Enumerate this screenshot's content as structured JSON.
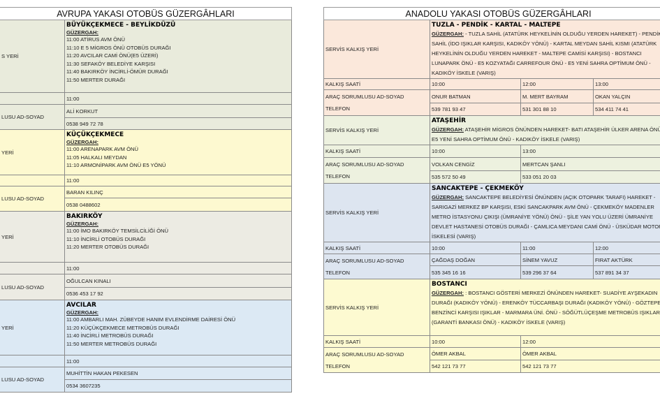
{
  "left": {
    "title": "AVRUPA YAKASI OTOBÜS GÜZERGÂHLARI",
    "sections": [
      {
        "label_route": "S YERİ",
        "name": "BÜYÜKÇEKMECE - BEYLİKDÜZÜ",
        "route_label": "GÜZERGAH:",
        "stops": [
          "11:00 ATİRUS AVM ÖNÜ",
          "11:10  E 5 MİGROS ÖNÜ OTOBÜS DURAĞI",
          "11:20  AVCILAR CAMİ ÖNÜ(E5 ÜZERİ)",
          "11:30  SEFAKÖY BELEDİYE KARŞISI",
          "11:40  BAKIRKÖY İNCİRLİ-ÖMÜR DURAĞI",
          "11:50  MERTER DURAĞI"
        ],
        "time": "11:00",
        "label_person": "LUSU AD-SOYAD",
        "person": "ALİ KORKUT",
        "phone": "0538 949 72 78",
        "color": "#e9ebdc"
      },
      {
        "label_route": "YERİ",
        "name": "KÜÇÜKÇEKMECE",
        "route_label": "GÜZERGAH:",
        "stops": [
          "11:00 ARENAPARK AVM ÖNÜ",
          "11:05 HALKALI MEYDAN",
          "11:10 ARMONİPARK AVM ÖNÜ E5 YÖNÜ"
        ],
        "time": "11:00",
        "label_person": "LUSU AD-SOYAD",
        "person": "BARAN KILINÇ",
        "phone": "0538 0488602",
        "color": "#fdf9d0"
      },
      {
        "label_route": "YERİ",
        "name": "BAKIRKÖY",
        "route_label": "GÜZERGAH:",
        "stops": [
          "11:00 İMO BAKIRKÖY TEMSİLCİLİĞİ ÖNÜ",
          "11:10  İNCİRLİ OTOBÜS DURAĞI",
          "11:20  MERTER OTOBÜS DURAĞI"
        ],
        "time": "11:00",
        "label_person": "LUSU AD-SOYAD",
        "person": "OĞULCAN KINALI",
        "phone": "0536 453 17 92",
        "color": "#ecebe3"
      },
      {
        "label_route": "YERİ",
        "name": "AVCILAR",
        "route_label": "GÜZERGAH:",
        "stops": [
          "11:00 AMBARLI MAH. ZÜBEYDE HANIM EVLENDİRME DAİRESİ ÖNÜ",
          "11:20 KÜÇÜKÇEKMECE  METROBÜS DURAĞI",
          "11:40 İNCİRLİ METROBÜS DURAĞI",
          "11:50 MERTER METROBÜS DURAĞI"
        ],
        "time": "11:00",
        "label_person": "LUSU AD-SOYAD",
        "person": "MUHİTTİN HAKAN PEKESEN",
        "phone": " 0534 3607235",
        "color": "#dce9f4"
      }
    ]
  },
  "right": {
    "title": "ANADOLU YAKASI OTOBÜS GÜZERGÂHLARI",
    "sections": [
      {
        "label_route": "SERVİS KALKIŞ YERİ",
        "name": "TUZLA - PENDİK - KARTAL - MALTEPE",
        "route_label": "GÜZERGAH:",
        "route_text": " - TUZLA SAHİL (ATATÜRK HEYKELİNİN OLDUĞU YERDEN HAREKET) - PENDİK SAHİL (İDO IŞIKLAR KARŞISI, KADIKÖY YÖNÜ) - KARTAL MEYDAN SAHİL KISMI (ATATÜRK HEYKELİNİN OLDUĞU YERDEN HAREKET - MALTEPE CAMİSİ KARŞISI) - BOSTANCI LUNAPARK ÖNÜ - E5 KOZYATAĞI CARREFOUR ÖNÜ - E5 YENİ SAHRA OPTİMUM ÖNÜ - KADIKÖY İSKELE (VARIŞ)",
        "label_time": "KALKIŞ SAATİ",
        "times": [
          "10:00",
          "12:00",
          "13:00"
        ],
        "label_person": "ARAÇ SORUMLUSU AD-SOYAD",
        "label_phone": "TELEFON",
        "persons": [
          "ONUR BATMAN",
          "M. MERT BAYRAM",
          "OKAN YALÇIN"
        ],
        "phones": [
          "539 781 93 47",
          "531 301 88 10",
          "534 411 74 41"
        ],
        "color": "#fbe8db"
      },
      {
        "label_route": "SERVİS KALKIŞ YERİ",
        "name": "ATAŞEHİR",
        "route_label": "GÜZERGAH:",
        "route_text": " ATAŞEHİR MİGROS ÖNÜNDEN HAREKET- BATI ATAŞEHİR ÜLKER ARENA ÖNÜ - E5 YENİ SAHRA OPTİMUM ÖNÜ - KADIKÖY İSKELE (VARIŞ)",
        "label_time": "KALKIŞ SAATİ",
        "times": [
          "10:00",
          "13:00"
        ],
        "label_person": "ARAÇ SORUMLUSU AD-SOYAD",
        "label_phone": "TELEFON",
        "persons": [
          "VOLKAN CENGİZ",
          "MERTCAN ŞANLI"
        ],
        "phones": [
          "535 572 50 49",
          "533 051 20 03"
        ],
        "color": "#edf1df"
      },
      {
        "label_route": "SERVİS KALKIŞ YERİ",
        "name": "SANCAKTEPE - ÇEKMEKÖY",
        "route_label": "GÜZERGAH:",
        "route_text": " SANCAKTEPE BELEDİYESİ ÖNÜNDEN (AÇIK OTOPARK TARAFI) HAREKET - SARIGAZİ MERKEZ BP KARŞISI, ESKİ SANCAKPARK AVM ÖNÜ - ÇEKMEKÖY MADENLER METRO İSTASYONU ÇIKIŞI (ÜMRANİYE YÖNÜ) ÖNÜ - ŞİLE YAN YOLU ÜZERİ ÜMRANİYE DEVLET HASTANESİ OTOBÜS DURAĞI - ÇAMLICA MEYDANI CAMİ ÖNÜ - ÜSKÜDAR MOTOR İSKELESİ (VARIŞ)",
        "label_time": "KALKIŞ SAATİ",
        "times": [
          "10:00",
          "11:00",
          "12:00"
        ],
        "label_person": "ARAÇ SORUMLUSU AD-SOYAD",
        "label_phone": "TELEFON",
        "persons": [
          "ÇAĞDAŞ DOĞAN",
          "SİNEM YAVUZ",
          "FIRAT AKTÜRK"
        ],
        "phones": [
          "535 345 16 16",
          "539 296 37 64",
          "537 891 34 37"
        ],
        "color": "#dde5f0"
      },
      {
        "label_route": "SERVİS KALKIŞ YERİ",
        "name": "BOSTANCI",
        "route_label": "GÜZERGAH:",
        "route_text": " : BOSTANCI GÖSTERİ MERKEZİ ÖNÜNDEN HAREKET- SUADİYE AYŞEKADIN DURAĞI (KADIKÖY YÖNÜ) - ERENKÖY TÜCCARBAŞI DURAĞI (KADIKÖY YÖNÜ) - GÖZTEPE BENZİNCİ KARŞISI IŞIKLAR - MARMARA ÜNİ. ÖNÜ - SÖĞÜTLÜÇEŞME METROBÜS IŞIKLAR (GARANTİ BANKASI ÖNÜ) - KADIKÖY İSKELE (VARIŞ)",
        "label_time": "KALKIŞ SAATİ",
        "times": [
          "10:00",
          "12:00"
        ],
        "label_person": "ARAÇ SORUMLUSU AD-SOYAD",
        "label_phone": "TELEFON",
        "persons": [
          "ÖMER AKBAL",
          "ÖMER AKBAL"
        ],
        "phones": [
          "542 121 73 77",
          "542 121 73 77"
        ],
        "color": "#fdfad1"
      }
    ]
  }
}
